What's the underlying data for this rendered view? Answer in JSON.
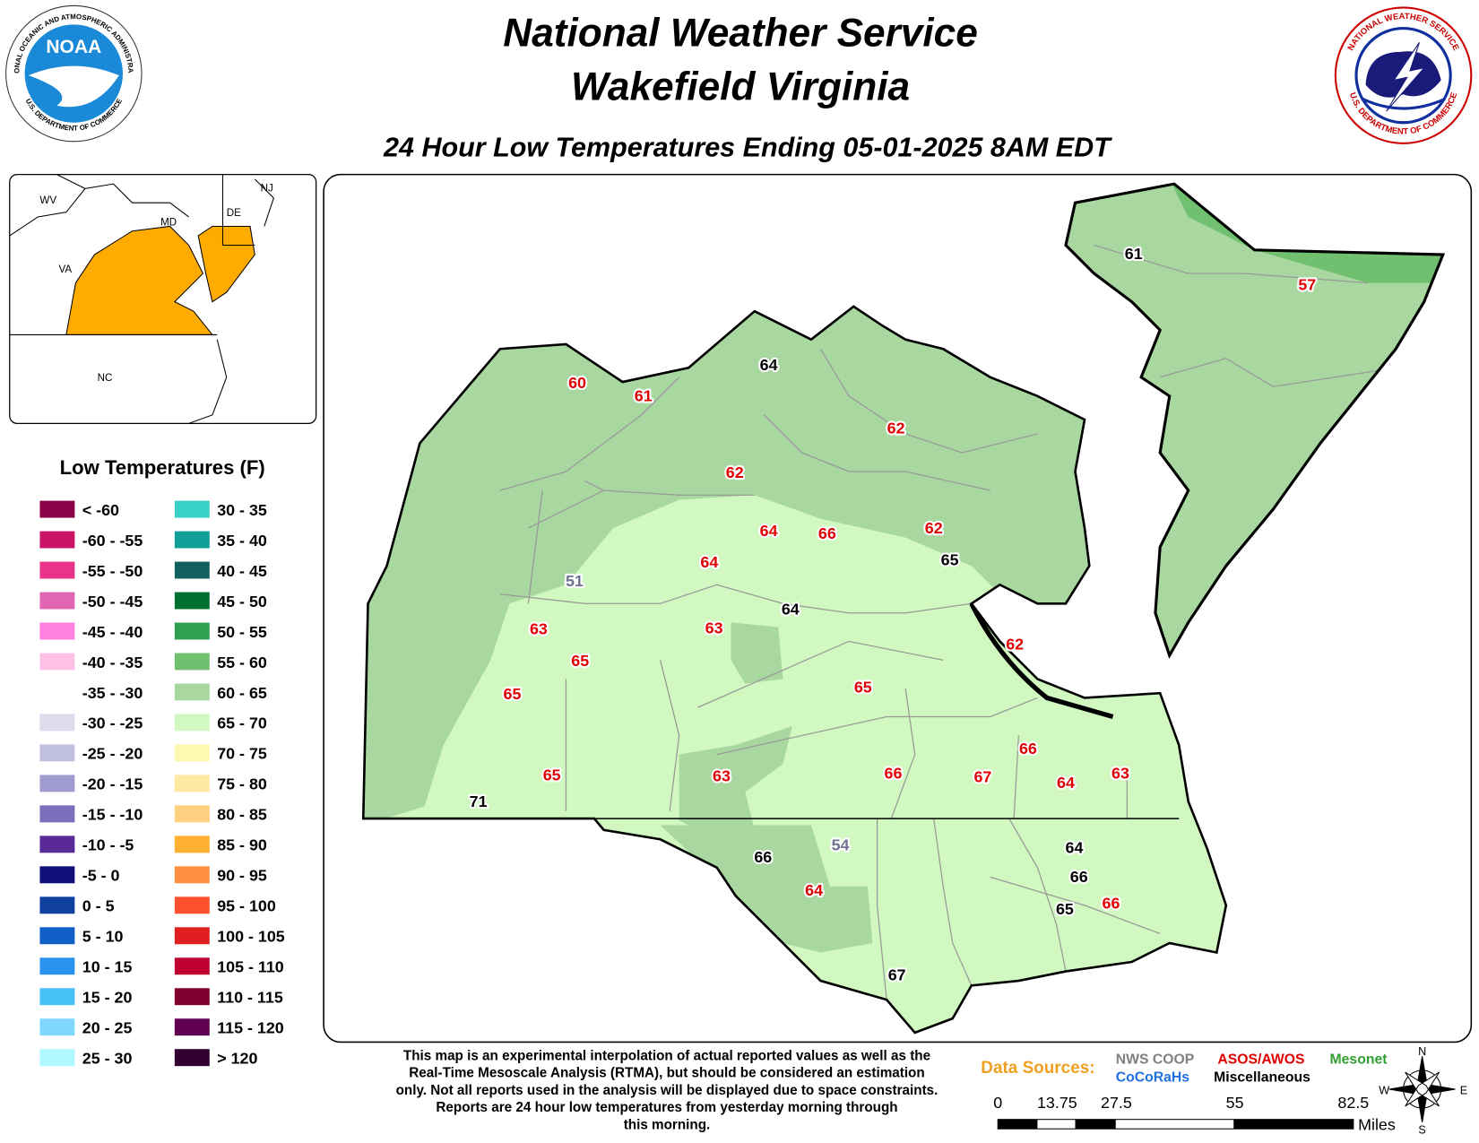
{
  "header": {
    "title_lines": [
      "National Weather Service",
      "Wakefield Virginia"
    ],
    "subtitle": "24 Hour Low Temperatures Ending 05-01-2025 8AM EDT"
  },
  "logos": {
    "noaa": {
      "label": "NOAA",
      "ring_top": "NATIONAL OCEANIC AND ATMOSPHERIC ADMINISTRATION",
      "ring_bottom": "U.S. DEPARTMENT OF COMMERCE"
    },
    "nws": {
      "ring_top": "NATIONAL WEATHER SERVICE",
      "ring_bottom": "U.S. DEPARTMENT OF COMMERCE"
    }
  },
  "inset": {
    "labels": [
      "WV",
      "MD",
      "DE",
      "NJ",
      "VA",
      "NC"
    ]
  },
  "legend": {
    "title": "Low Temperatures (F)",
    "items": [
      {
        "label": "< -60",
        "color": "#8c004b"
      },
      {
        "label": "-60 - -55",
        "color": "#cc1466"
      },
      {
        "label": "-55 - -50",
        "color": "#e8338a"
      },
      {
        "label": "-50 - -45",
        "color": "#e066b3"
      },
      {
        "label": "-45 - -40",
        "color": "#ff80e0"
      },
      {
        "label": "-40 - -35",
        "color": "#ffc0e8"
      },
      {
        "label": "-35 - -30",
        "color": "#ffffff"
      },
      {
        "label": "-30 - -25",
        "color": "#dcdcec"
      },
      {
        "label": "-25 - -20",
        "color": "#c0c0e0"
      },
      {
        "label": "-20 - -15",
        "color": "#a09cd0"
      },
      {
        "label": "-15 - -10",
        "color": "#7b70bc"
      },
      {
        "label": "-10 - -5",
        "color": "#5a2a98"
      },
      {
        "label": "-5 - 0",
        "color": "#10107a"
      },
      {
        "label": "0 - 5",
        "color": "#1040a0"
      },
      {
        "label": "5 - 10",
        "color": "#1060c8"
      },
      {
        "label": "10 - 15",
        "color": "#2894f0"
      },
      {
        "label": "15 - 20",
        "color": "#48c0f8"
      },
      {
        "label": "20 - 25",
        "color": "#80d8ff"
      },
      {
        "label": "25 - 30",
        "color": "#b0f8ff"
      },
      {
        "label": "30 - 35",
        "color": "#38d0c8"
      },
      {
        "label": "35 - 40",
        "color": "#10a098"
      },
      {
        "label": "40 - 45",
        "color": "#106060"
      },
      {
        "label": "45 - 50",
        "color": "#007030"
      },
      {
        "label": "50 - 55",
        "color": "#30a050"
      },
      {
        "label": "55 - 60",
        "color": "#70c070"
      },
      {
        "label": "60 - 65",
        "color": "#a8d8a0"
      },
      {
        "label": "65 - 70",
        "color": "#d0f8c0"
      },
      {
        "label": "70 - 75",
        "color": "#fff8b0"
      },
      {
        "label": "75 - 80",
        "color": "#ffe8a0"
      },
      {
        "label": "80 - 85",
        "color": "#ffd080"
      },
      {
        "label": "85 - 90",
        "color": "#ffb030"
      },
      {
        "label": "90 - 95",
        "color": "#ff9040"
      },
      {
        "label": "95 - 100",
        "color": "#ff5030"
      },
      {
        "label": "100 - 105",
        "color": "#e02020"
      },
      {
        "label": "105 - 110",
        "color": "#c00030"
      },
      {
        "label": "110 - 115",
        "color": "#800030"
      },
      {
        "label": "115 - 120",
        "color": "#600050"
      },
      {
        "label": "> 120",
        "color": "#300030"
      }
    ]
  },
  "stations": [
    {
      "value": 61,
      "color": "#000000"
    },
    {
      "value": 57,
      "color": "#e00000"
    },
    {
      "value": 64,
      "color": "#000000"
    },
    {
      "value": 60,
      "color": "#e00000"
    },
    {
      "value": 61,
      "color": "#e00000"
    },
    {
      "value": 62,
      "color": "#e00000"
    },
    {
      "value": 62,
      "color": "#e00000"
    },
    {
      "value": 64,
      "color": "#e00000"
    },
    {
      "value": 66,
      "color": "#e00000"
    },
    {
      "value": 62,
      "color": "#e00000"
    },
    {
      "value": 65,
      "color": "#000000"
    },
    {
      "value": 64,
      "color": "#e00000"
    },
    {
      "value": 51,
      "color": "#707090"
    },
    {
      "value": 64,
      "color": "#000000"
    },
    {
      "value": 63,
      "color": "#e00000"
    },
    {
      "value": 63,
      "color": "#e00000"
    },
    {
      "value": 62,
      "color": "#e00000"
    },
    {
      "value": 65,
      "color": "#e00000"
    },
    {
      "value": 65,
      "color": "#e00000"
    },
    {
      "value": 65,
      "color": "#e00000"
    },
    {
      "value": 66,
      "color": "#e00000"
    },
    {
      "value": 66,
      "color": "#e00000"
    },
    {
      "value": 67,
      "color": "#e00000"
    },
    {
      "value": 64,
      "color": "#e00000"
    },
    {
      "value": 63,
      "color": "#e00000"
    },
    {
      "value": 65,
      "color": "#e00000"
    },
    {
      "value": 63,
      "color": "#e00000"
    },
    {
      "value": 71,
      "color": "#000000"
    },
    {
      "value": 64,
      "color": "#000000"
    },
    {
      "value": 54,
      "color": "#707090"
    },
    {
      "value": 66,
      "color": "#000000"
    },
    {
      "value": 66,
      "color": "#000000"
    },
    {
      "value": 64,
      "color": "#e00000"
    },
    {
      "value": 65,
      "color": "#000000"
    },
    {
      "value": 66,
      "color": "#e00000"
    },
    {
      "value": 67,
      "color": "#000000"
    }
  ],
  "footer": {
    "note_lines": [
      "This map is an experimental interpolation of actual reported values as well as the",
      "Real-Time Mesoscale Analysis (RTMA), but should be considered an estimation",
      "only. Not all reports used in the analysis will be displayed due to space constraints.",
      "Reports are 24 hour low temperatures from yesterday morning through",
      "this morning."
    ],
    "sources_title": "Data Sources:",
    "sources": [
      {
        "name": "NWS COOP",
        "color": "#808080"
      },
      {
        "name": "ASOS/AWOS",
        "color": "#e00000"
      },
      {
        "name": "Mesonet",
        "color": "#30a030"
      },
      {
        "name": "CoCoRaHs",
        "color": "#2070e0"
      },
      {
        "name": "Miscellaneous",
        "color": "#000000"
      }
    ],
    "scale": {
      "ticks": [
        0,
        13.75,
        27.5,
        55,
        82.5
      ],
      "unit": "Miles"
    },
    "compass": [
      "N",
      "E",
      "S",
      "W"
    ]
  }
}
